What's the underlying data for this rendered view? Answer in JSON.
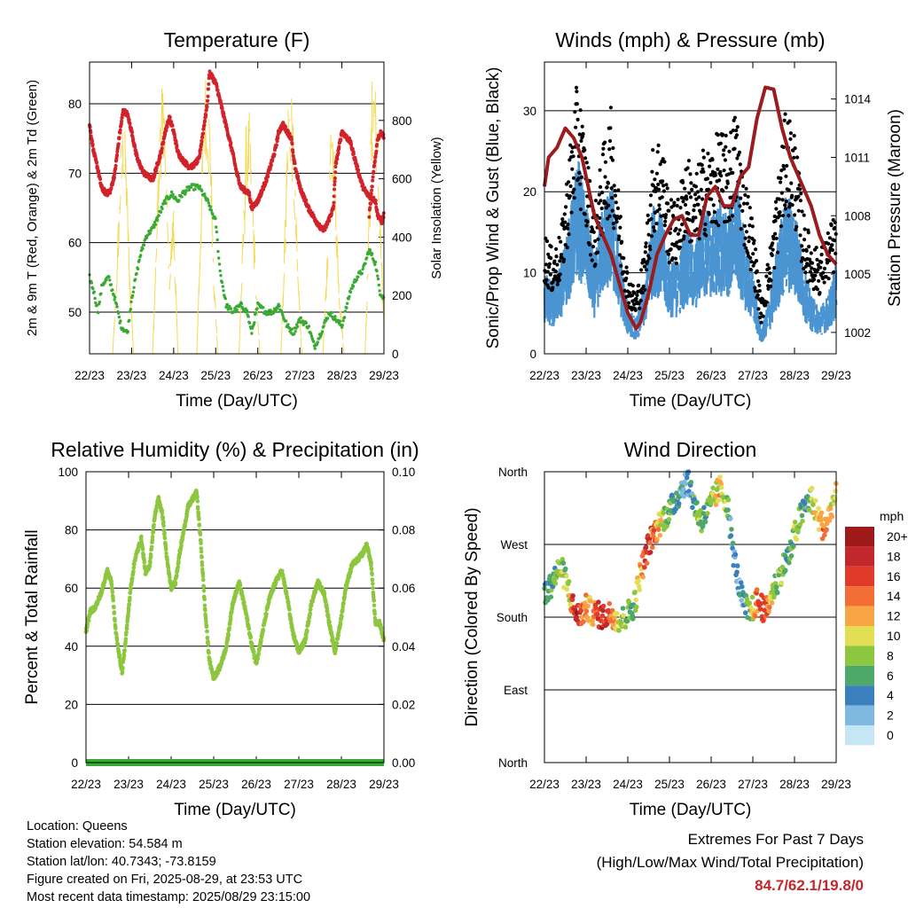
{
  "ticks_x": [
    "22/23",
    "23/23",
    "24/23",
    "25/23",
    "26/23",
    "27/23",
    "28/23",
    "29/23"
  ],
  "colors": {
    "temp": "#d2232a",
    "dew": "#3aaa35",
    "solar": "#f5d94e",
    "gust": "#000000",
    "wind": "#4b94d2",
    "pressure": "#9b1c1f",
    "rh": "#8dc63f",
    "precip": "#39a935"
  },
  "chart_data": [
    {
      "type": "line",
      "title": "Temperature (F)",
      "xlabel": "Time (Day/UTC)",
      "ylabel": "2m & 9m T (Red, Orange) & 2m Td (Green)",
      "y2label": "Solar Insolation (Yellow)",
      "ylim": [
        44,
        86
      ],
      "yticks": [
        50,
        60,
        70,
        80
      ],
      "y2lim": [
        0,
        1000
      ],
      "y2ticks": [
        0,
        200,
        400,
        600,
        800
      ],
      "grid": true,
      "series": [
        {
          "key": "temp",
          "axis": "left",
          "x": [
            0,
            0.1,
            0.2,
            0.28,
            0.4,
            0.5,
            0.6,
            0.7,
            0.8,
            0.9,
            1.0,
            1.1,
            1.2,
            1.3,
            1.5,
            1.7,
            1.8,
            1.9,
            2.0,
            2.1,
            2.2,
            2.35,
            2.45,
            2.6,
            2.8,
            2.85,
            3.0,
            3.2,
            3.4,
            3.5,
            3.6,
            3.8,
            3.85,
            4.0,
            4.2,
            4.4,
            4.5,
            4.6,
            4.8,
            4.85,
            5.0,
            5.2,
            5.4,
            5.5,
            5.6,
            5.8,
            5.85,
            6.0,
            6.2,
            6.4,
            6.5,
            6.6,
            6.8,
            6.85,
            6.95,
            7.0
          ],
          "values": [
            77,
            73,
            70.5,
            68,
            67,
            67.5,
            70,
            75,
            79,
            78.5,
            76,
            73,
            71,
            70,
            69,
            73,
            76,
            78,
            76,
            73,
            72,
            71,
            71,
            72,
            80,
            84.5,
            83,
            78,
            73,
            70,
            68,
            67,
            65,
            66,
            69,
            73,
            76,
            77,
            75,
            72,
            68,
            65,
            63,
            62,
            62,
            65,
            71,
            76,
            74.5,
            70,
            68,
            67,
            66,
            64,
            63,
            64
          ]
        },
        {
          "key": "temp2",
          "axis": "left",
          "x": [
            6.65,
            6.75,
            6.85,
            6.95,
            7.0
          ],
          "values": [
            64,
            70,
            75,
            76,
            75
          ]
        },
        {
          "key": "dew",
          "axis": "left",
          "x": [
            0,
            0.1,
            0.2,
            0.3,
            0.45,
            0.6,
            0.75,
            0.9,
            1.0,
            1.1,
            1.2,
            1.35,
            1.5,
            1.65,
            1.8,
            1.95,
            2.1,
            2.2,
            2.4,
            2.6,
            2.8,
            3.0,
            3.1,
            3.25,
            3.4,
            3.6,
            3.75,
            3.85,
            4.0,
            4.2,
            4.35,
            4.5,
            4.7,
            4.85,
            5.0,
            5.2,
            5.35,
            5.5,
            5.7,
            5.85,
            6.0,
            6.2,
            6.35,
            6.5,
            6.65,
            6.8,
            6.9,
            7.0
          ],
          "values": [
            55,
            53,
            50,
            54,
            55,
            52,
            48,
            47,
            52,
            55,
            58,
            61,
            62,
            64,
            66,
            67,
            66,
            67,
            68,
            68,
            66,
            63,
            56,
            51,
            50,
            51,
            50,
            47,
            51,
            50,
            50,
            51,
            48,
            47,
            49,
            48,
            45,
            47,
            50,
            49,
            48,
            53,
            55,
            56,
            59,
            57,
            53,
            52
          ]
        },
        {
          "key": "solar",
          "axis": "right",
          "x": [
            0.3,
            0.55,
            0.65,
            0.72,
            0.8,
            0.88,
            0.95,
            1.05,
            1.3,
            1.5,
            1.6,
            1.72,
            1.8,
            1.9,
            2.0,
            2.1,
            2.3,
            2.55,
            2.65,
            2.72,
            2.8,
            2.88,
            2.95,
            3.05,
            3.3,
            3.55,
            3.65,
            3.72,
            3.8,
            3.88,
            3.95,
            4.05,
            4.3,
            4.55,
            4.65,
            4.72,
            4.8,
            4.88,
            4.95,
            5.05,
            5.3,
            5.55,
            5.65,
            5.72,
            5.8,
            5.88,
            5.95,
            6.05,
            6.3,
            6.55,
            6.65,
            6.72,
            6.8,
            6.88,
            6.95,
            7.0
          ],
          "values": [
            0,
            0,
            300,
            600,
            820,
            650,
            300,
            0,
            0,
            0,
            450,
            980,
            700,
            300,
            500,
            0,
            0,
            0,
            500,
            900,
            960,
            700,
            300,
            0,
            0,
            0,
            400,
            750,
            800,
            550,
            250,
            0,
            0,
            0,
            450,
            850,
            900,
            600,
            300,
            0,
            0,
            0,
            350,
            700,
            780,
            450,
            200,
            0,
            0,
            0,
            500,
            900,
            970,
            600,
            300,
            100
          ]
        }
      ]
    },
    {
      "type": "scatter",
      "title": "Winds (mph) & Pressure (mb)",
      "xlabel": "Time (Day/UTC)",
      "ylabel": "Sonic/Prop Wind & Gust (Blue, Black)",
      "y2label": "Station Pressure (Maroon)",
      "ylim": [
        0,
        36
      ],
      "yticks": [
        0,
        10,
        20,
        30
      ],
      "y2lim": [
        1000.9,
        1015.9
      ],
      "y2ticks": [
        1002,
        1005,
        1008,
        1011,
        1014
      ],
      "grid": true,
      "series": [
        {
          "key": "wind",
          "axis": "left",
          "x": [
            0,
            0.2,
            0.4,
            0.6,
            0.8,
            1.0,
            1.2,
            1.4,
            1.6,
            1.8,
            2.0,
            2.2,
            2.4,
            2.6,
            2.8,
            3.0,
            3.2,
            3.4,
            3.6,
            3.8,
            4.0,
            4.2,
            4.4,
            4.6,
            4.8,
            5.0,
            5.2,
            5.4,
            5.6,
            5.8,
            6.0,
            6.2,
            6.4,
            6.6,
            6.8,
            7.0
          ],
          "values": [
            7,
            6,
            8,
            12,
            17,
            13,
            8,
            13,
            15,
            9,
            4,
            3,
            6,
            13,
            12,
            8,
            8,
            11,
            9,
            13,
            12,
            13,
            12,
            15,
            10,
            7,
            2,
            5,
            10,
            14,
            13,
            8,
            5,
            4,
            5,
            8
          ]
        },
        {
          "key": "gust",
          "axis": "left",
          "x": [
            0,
            0.2,
            0.4,
            0.6,
            0.8,
            1.0,
            1.2,
            1.4,
            1.6,
            1.8,
            2.0,
            2.2,
            2.4,
            2.6,
            2.8,
            3.0,
            3.2,
            3.4,
            3.6,
            3.8,
            4.0,
            4.2,
            4.4,
            4.6,
            4.8,
            5.0,
            5.2,
            5.4,
            5.6,
            5.8,
            6.0,
            6.2,
            6.4,
            6.6,
            6.8,
            7.0
          ],
          "values": [
            12,
            10,
            12,
            20,
            27,
            20,
            14,
            20,
            24,
            15,
            8,
            6,
            10,
            20,
            22,
            15,
            15,
            20,
            17,
            20,
            20,
            22,
            21,
            24,
            18,
            13,
            5,
            10,
            17,
            24,
            22,
            14,
            11,
            10,
            12,
            14
          ]
        },
        {
          "key": "pressure",
          "axis": "right",
          "x": [
            0,
            0.1,
            0.3,
            0.5,
            0.7,
            0.9,
            1.0,
            1.2,
            1.4,
            1.6,
            1.8,
            2.0,
            2.2,
            2.3,
            2.5,
            2.7,
            2.9,
            3.1,
            3.3,
            3.5,
            3.7,
            3.9,
            4.1,
            4.3,
            4.5,
            4.7,
            4.9,
            5.1,
            5.3,
            5.5,
            5.7,
            5.9,
            6.0,
            6.2,
            6.4,
            6.6,
            6.8,
            7.0
          ],
          "values": [
            1009.5,
            1011,
            1011.5,
            1012.5,
            1012,
            1011,
            1010,
            1008,
            1007,
            1006,
            1004.5,
            1003,
            1002.2,
            1002.5,
            1004,
            1006,
            1007,
            1007.8,
            1008,
            1007,
            1007,
            1009,
            1009.5,
            1008.5,
            1008.5,
            1010,
            1010.5,
            1013,
            1014.6,
            1014.5,
            1012.5,
            1011,
            1010.5,
            1009.5,
            1008.5,
            1007,
            1006,
            1005.5
          ]
        }
      ]
    },
    {
      "type": "line",
      "title": "Relative Humidity (%) & Precipitation (in)",
      "xlabel": "Time (Day/UTC)",
      "ylabel": "Percent & Total Rainfall",
      "ylim": [
        0,
        100
      ],
      "yticks": [
        0,
        20,
        40,
        60,
        80,
        100
      ],
      "y2lim": [
        0,
        0.1
      ],
      "y2ticks": [
        "0.00",
        "0.02",
        "0.04",
        "0.06",
        "0.08",
        "0.10"
      ],
      "grid": true,
      "series": [
        {
          "key": "rh",
          "axis": "left",
          "x": [
            0,
            0.1,
            0.2,
            0.35,
            0.5,
            0.6,
            0.7,
            0.8,
            0.85,
            0.95,
            1.05,
            1.15,
            1.3,
            1.4,
            1.5,
            1.6,
            1.7,
            1.8,
            1.9,
            2.0,
            2.1,
            2.2,
            2.4,
            2.6,
            2.7,
            2.8,
            2.9,
            3.0,
            3.15,
            3.3,
            3.45,
            3.6,
            3.75,
            3.9,
            4.0,
            4.15,
            4.3,
            4.45,
            4.6,
            4.75,
            4.85,
            5.0,
            5.15,
            5.3,
            5.45,
            5.6,
            5.75,
            5.85,
            6.0,
            6.1,
            6.25,
            6.4,
            6.5,
            6.6,
            6.7,
            6.8,
            6.9,
            7.0
          ],
          "values": [
            45,
            52,
            53,
            58,
            66,
            62,
            45,
            35,
            31,
            45,
            60,
            70,
            77,
            65,
            68,
            83,
            91,
            85,
            70,
            60,
            62,
            72,
            88,
            93,
            75,
            52,
            35,
            29,
            33,
            40,
            55,
            62,
            52,
            40,
            34,
            45,
            56,
            62,
            66,
            55,
            45,
            38,
            42,
            55,
            62,
            58,
            45,
            38,
            50,
            60,
            68,
            70,
            72,
            75,
            68,
            48,
            48,
            42
          ]
        },
        {
          "key": "precip",
          "axis": "right",
          "x": [
            0,
            7.0
          ],
          "values": [
            0,
            0
          ]
        }
      ]
    },
    {
      "type": "scatter",
      "title": "Wind Direction",
      "xlabel": "Time (Day/UTC)",
      "ylabel": "Direction (Colored By Speed)",
      "yticks": [
        "North",
        "East",
        "South",
        "West",
        "North"
      ],
      "ylim": [
        0,
        360
      ],
      "grid": true,
      "legend": {
        "title": "mph",
        "labels": [
          "20+",
          "18",
          "16",
          "14",
          "12",
          "10",
          "8",
          "6",
          "4",
          "2",
          "0"
        ],
        "colors": [
          "#9e1a1a",
          "#c1272d",
          "#e03a2a",
          "#f26e35",
          "#f9a445",
          "#e3df55",
          "#8dc63f",
          "#4da86a",
          "#3b7fbd",
          "#7fb9e2",
          "#c6e6f6"
        ],
        "placement": "right"
      },
      "x": [
        0,
        0.1,
        0.2,
        0.3,
        0.4,
        0.5,
        0.6,
        0.7,
        0.8,
        0.9,
        1.0,
        1.1,
        1.2,
        1.3,
        1.4,
        1.5,
        1.6,
        1.7,
        1.8,
        1.9,
        2.0,
        2.1,
        2.2,
        2.3,
        2.4,
        2.5,
        2.6,
        2.7,
        2.8,
        2.9,
        3.0,
        3.1,
        3.2,
        3.3,
        3.4,
        3.5,
        3.6,
        3.7,
        3.8,
        3.9,
        4.0,
        4.1,
        4.2,
        4.3,
        4.4,
        4.5,
        4.6,
        4.7,
        4.8,
        4.9,
        5.0,
        5.1,
        5.2,
        5.3,
        5.4,
        5.5,
        5.6,
        5.7,
        5.8,
        5.9,
        6.0,
        6.1,
        6.2,
        6.3,
        6.4,
        6.5,
        6.6,
        6.7,
        6.8,
        6.9,
        7.0
      ],
      "directions": [
        205,
        215,
        225,
        235,
        240,
        228,
        210,
        190,
        182,
        185,
        192,
        188,
        185,
        183,
        180,
        182,
        185,
        180,
        175,
        178,
        185,
        190,
        205,
        235,
        250,
        270,
        280,
        290,
        300,
        305,
        310,
        320,
        330,
        340,
        350,
        340,
        320,
        305,
        300,
        310,
        320,
        330,
        340,
        330,
        320,
        270,
        240,
        210,
        195,
        185,
        190,
        200,
        195,
        185,
        200,
        215,
        225,
        240,
        250,
        260,
        280,
        300,
        310,
        320,
        330,
        310,
        300,
        290,
        300,
        320,
        330
      ],
      "speeds": [
        6,
        7,
        6,
        8,
        9,
        8,
        10,
        16,
        18,
        14,
        12,
        10,
        14,
        17,
        18,
        16,
        14,
        12,
        10,
        8,
        7,
        6,
        9,
        12,
        16,
        17,
        14,
        12,
        10,
        8,
        7,
        6,
        5,
        4,
        3,
        4,
        6,
        8,
        7,
        6,
        8,
        10,
        11,
        9,
        7,
        4,
        3,
        3,
        5,
        8,
        10,
        14,
        18,
        16,
        12,
        9,
        7,
        8,
        6,
        5,
        9,
        7,
        6,
        5,
        8,
        10,
        12,
        14,
        12,
        10,
        9
      ]
    }
  ],
  "info": {
    "location": "Location: Queens",
    "elevation": "Station elevation: 54.584 m",
    "latlon": "Station lat/lon: 40.7343; -73.8159",
    "created": "Figure created on Fri, 2025-08-29, at 23:53 UTC",
    "recent": "Most recent data timestamp: 2025/08/29 23:15:00"
  },
  "extremes": {
    "heading": "Extremes For Past 7 Days",
    "sub": "(High/Low/Max Wind/Total Precipitation)",
    "value": "84.7/62.1/19.8/0"
  }
}
